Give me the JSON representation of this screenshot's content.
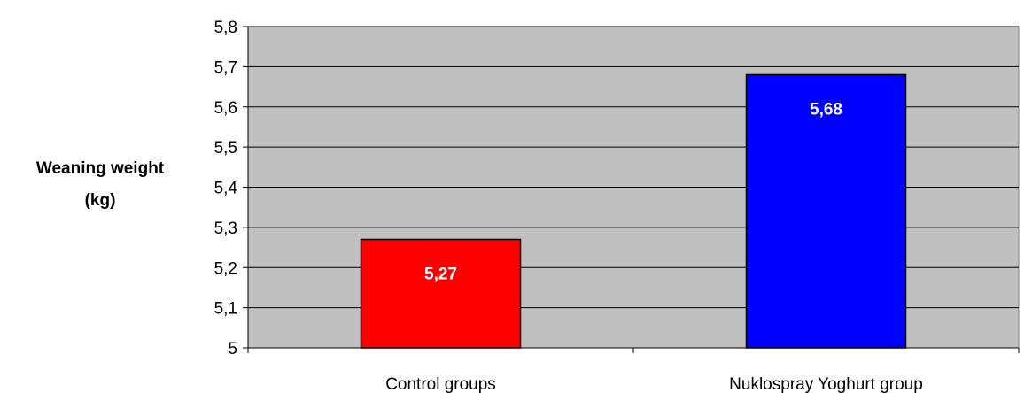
{
  "chart_data": {
    "type": "bar",
    "categories": [
      "Control groups",
      "Nuklospray Yoghurt group"
    ],
    "values": [
      5.27,
      5.68
    ],
    "data_labels": [
      "5,27",
      "5,68"
    ],
    "bar_colors": [
      "#ff0000",
      "#0000ff"
    ],
    "title": "",
    "xlabel": "",
    "ylabel_lines": [
      "Weaning weight",
      "(kg)"
    ],
    "ylim": [
      5,
      5.8
    ],
    "yticks": [
      5,
      5.1,
      5.2,
      5.3,
      5.4,
      5.5,
      5.6,
      5.7,
      5.8
    ],
    "ytick_labels": [
      "5",
      "5,1",
      "5,2",
      "5,3",
      "5,4",
      "5,5",
      "5,6",
      "5,7",
      "5,8"
    ],
    "grid": true,
    "plot_background": "#c0c0c0",
    "legend": "none"
  }
}
